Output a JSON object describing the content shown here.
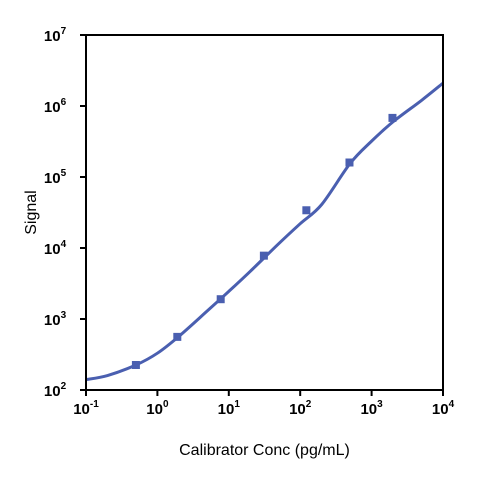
{
  "chart_data": {
    "type": "scatter",
    "title": "",
    "xlabel": "Calibrator Conc (pg/mL)",
    "ylabel": "Signal",
    "xscale": "log",
    "yscale": "log",
    "xlim": [
      0.1,
      10000
    ],
    "ylim": [
      100,
      10000000
    ],
    "grid": false,
    "x_ticks": [
      {
        "base": "10",
        "exp": "-1",
        "value": 0.1
      },
      {
        "base": "10",
        "exp": "0",
        "value": 1
      },
      {
        "base": "10",
        "exp": "1",
        "value": 10
      },
      {
        "base": "10",
        "exp": "2",
        "value": 100
      },
      {
        "base": "10",
        "exp": "3",
        "value": 1000
      },
      {
        "base": "10",
        "exp": "4",
        "value": 10000
      }
    ],
    "y_ticks": [
      {
        "base": "10",
        "exp": "2",
        "value": 100
      },
      {
        "base": "10",
        "exp": "3",
        "value": 1000
      },
      {
        "base": "10",
        "exp": "4",
        "value": 10000
      },
      {
        "base": "10",
        "exp": "5",
        "value": 100000
      },
      {
        "base": "10",
        "exp": "6",
        "value": 1000000
      },
      {
        "base": "10",
        "exp": "7",
        "value": 10000000
      }
    ],
    "series": [
      {
        "kind": "points",
        "marker": "square",
        "color": "#4a5fb0",
        "x": [
          0.5,
          1.9,
          7.7,
          31,
          122,
          490,
          1960
        ],
        "y": [
          225,
          560,
          1900,
          7800,
          34000,
          160000,
          680000
        ]
      },
      {
        "kind": "fit_curve",
        "color": "#4a5fb0",
        "x": [
          0.1,
          0.2,
          0.5,
          1,
          2,
          5,
          10,
          20,
          50,
          100,
          200,
          500,
          1000,
          2000,
          5000,
          10000
        ],
        "y": [
          140,
          160,
          225,
          330,
          570,
          1300,
          2450,
          4700,
          11500,
          22000,
          41000,
          155000,
          320000,
          600000,
          1200000,
          2100000
        ]
      }
    ]
  }
}
